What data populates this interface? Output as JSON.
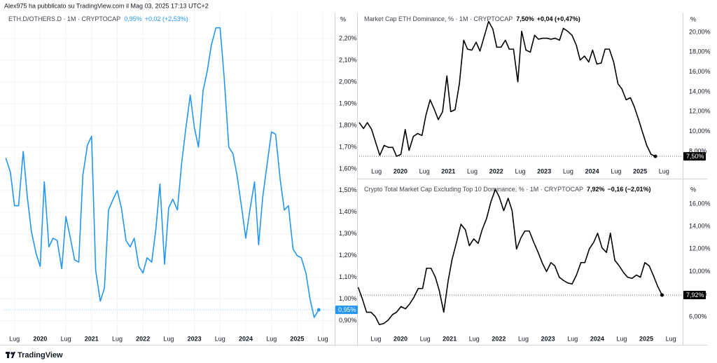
{
  "header": "Alex975 ha pubblicato su TradingView.com il Mag 03, 2025 17:13 UTC+2",
  "footer": "TradingView",
  "chart_data": [
    {
      "type": "line",
      "title": "ETH.D/OTHERS.D · 1M · CRYPTOCAP",
      "legend_value": "0,95%",
      "legend_change": "+0,02 (+2,53%)",
      "y_unit": "%",
      "last_value_label": "0,95%",
      "color": "#2196f3",
      "grid": true,
      "xlim": [
        2019.3,
        2025.73
      ],
      "ylim": [
        0.86,
        2.32
      ],
      "xticks": [
        {
          "value": 2019.5,
          "label": "Lug"
        },
        2020,
        {
          "value": 2020.5,
          "label": "Lug"
        },
        2021,
        {
          "value": 2021.5,
          "label": "Lug"
        },
        2022,
        {
          "value": 2022.5,
          "label": "Lug"
        },
        2023,
        {
          "value": 2023.5,
          "label": "Lug"
        },
        2024,
        {
          "value": 2024.5,
          "label": "Lug"
        },
        2025,
        {
          "value": 2025.5,
          "label": "Lug"
        }
      ],
      "yticks": [
        {
          "value": 0.9,
          "label": "0,90%"
        },
        {
          "value": 1.0,
          "label": "1,00%"
        },
        {
          "value": 1.1,
          "label": "1,10%"
        },
        {
          "value": 1.2,
          "label": "1,20%"
        },
        {
          "value": 1.3,
          "label": "1,30%"
        },
        {
          "value": 1.4,
          "label": "1,40%"
        },
        {
          "value": 1.5,
          "label": "1,50%"
        },
        {
          "value": 1.6,
          "label": "1,60%"
        },
        {
          "value": 1.7,
          "label": "1,70%"
        },
        {
          "value": 1.8,
          "label": "1,80%"
        },
        {
          "value": 1.9,
          "label": "1,90%"
        },
        {
          "value": 2.0,
          "label": "2,00%"
        },
        {
          "value": 2.1,
          "label": "2,10%"
        },
        {
          "value": 2.2,
          "label": "2,20%"
        }
      ],
      "x": [
        2019.33,
        2019.42,
        2019.5,
        2019.58,
        2019.67,
        2019.75,
        2019.83,
        2019.92,
        2020,
        2020.08,
        2020.17,
        2020.25,
        2020.33,
        2020.42,
        2020.5,
        2020.58,
        2020.67,
        2020.75,
        2020.83,
        2020.92,
        2021,
        2021.08,
        2021.17,
        2021.25,
        2021.33,
        2021.42,
        2021.5,
        2021.58,
        2021.67,
        2021.75,
        2021.83,
        2021.92,
        2022,
        2022.08,
        2022.17,
        2022.25,
        2022.33,
        2022.42,
        2022.5,
        2022.58,
        2022.67,
        2022.75,
        2022.83,
        2022.92,
        2023,
        2023.08,
        2023.17,
        2023.25,
        2023.33,
        2023.42,
        2023.5,
        2023.58,
        2023.67,
        2023.75,
        2023.83,
        2023.92,
        2024,
        2024.08,
        2024.17,
        2024.25,
        2024.33,
        2024.42,
        2024.5,
        2024.58,
        2024.67,
        2024.75,
        2024.83,
        2024.92,
        2025,
        2025.08,
        2025.17,
        2025.25,
        2025.33,
        2025.42
      ],
      "values": [
        1.65,
        1.585,
        1.43,
        1.43,
        1.68,
        1.47,
        1.31,
        1.21,
        1.15,
        1.54,
        1.24,
        1.28,
        1.27,
        1.14,
        1.38,
        1.29,
        1.18,
        1.17,
        1.57,
        1.71,
        1.75,
        1.13,
        0.99,
        1.05,
        1.41,
        1.46,
        1.5,
        1.42,
        1.27,
        1.24,
        1.28,
        1.15,
        1.12,
        1.19,
        1.17,
        1.32,
        1.53,
        1.16,
        1.42,
        1.46,
        1.41,
        1.62,
        1.78,
        1.94,
        1.79,
        1.7,
        1.96,
        2.05,
        2.17,
        2.25,
        2.25,
        2.02,
        1.7,
        1.67,
        1.57,
        1.42,
        1.28,
        1.41,
        1.54,
        1.25,
        1.47,
        1.63,
        1.77,
        1.76,
        1.55,
        1.41,
        1.43,
        1.23,
        1.2,
        1.19,
        1.12,
        1.0,
        0.915,
        0.95
      ]
    },
    {
      "type": "line",
      "title": "Market Cap ETH Dominance, % · 1M · CRYPTOCAP",
      "legend_value": "7,50%",
      "legend_change": "+0,04 (+0,47%)",
      "y_unit": "%",
      "last_value_label": "7,50%",
      "color": "#000000",
      "grid": false,
      "xlim": [
        2019.14,
        2025.89
      ],
      "ylim": [
        6.87,
        21.98
      ],
      "xticks": [
        {
          "value": 2019.5,
          "label": "Lug"
        },
        2020,
        {
          "value": 2020.5,
          "label": "Lug"
        },
        2021,
        {
          "value": 2021.5,
          "label": "Lug"
        },
        2022,
        {
          "value": 2022.5,
          "label": "Lug"
        },
        2023,
        {
          "value": 2023.5,
          "label": "Lug"
        },
        2024,
        {
          "value": 2024.5,
          "label": "Lug"
        },
        2025,
        {
          "value": 2025.5,
          "label": "Lug"
        }
      ],
      "yticks": [
        {
          "value": 8,
          "label": "8,00%"
        },
        {
          "value": 10,
          "label": "10,00%"
        },
        {
          "value": 12,
          "label": "12,00%"
        },
        {
          "value": 14,
          "label": "14,00%"
        },
        {
          "value": 16,
          "label": "16,00%"
        },
        {
          "value": 18,
          "label": "18,00%"
        },
        {
          "value": 20,
          "label": "20,00%"
        }
      ],
      "x": [
        2019.14,
        2019.23,
        2019.31,
        2019.4,
        2019.49,
        2019.57,
        2019.66,
        2019.75,
        2019.84,
        2019.92,
        2020.01,
        2020.1,
        2020.18,
        2020.27,
        2020.36,
        2020.45,
        2020.53,
        2020.62,
        2020.71,
        2020.79,
        2020.88,
        2020.97,
        2021.05,
        2021.14,
        2021.23,
        2021.32,
        2021.4,
        2021.49,
        2021.58,
        2021.66,
        2021.75,
        2021.84,
        2021.93,
        2022.01,
        2022.1,
        2022.19,
        2022.27,
        2022.36,
        2022.45,
        2022.53,
        2022.62,
        2022.71,
        2022.8,
        2022.88,
        2022.97,
        2023.06,
        2023.14,
        2023.23,
        2023.32,
        2023.4,
        2023.49,
        2023.58,
        2023.67,
        2023.75,
        2023.84,
        2023.93,
        2024.01,
        2024.1,
        2024.19,
        2024.27,
        2024.36,
        2024.45,
        2024.54,
        2024.62,
        2024.71,
        2024.8,
        2024.88,
        2024.97,
        2025.06,
        2025.14,
        2025.23,
        2025.32
      ],
      "values": [
        10.9,
        10.3,
        10.9,
        10.2,
        8.8,
        7.6,
        8.6,
        8.4,
        8.4,
        7.5,
        7.7,
        10.2,
        8.1,
        9.5,
        9.8,
        9.6,
        11.6,
        13.2,
        12.2,
        11.2,
        12.0,
        15.6,
        12.0,
        12.2,
        14.8,
        19.2,
        18.3,
        18.2,
        19.0,
        18.1,
        19.6,
        21.1,
        20.3,
        18.5,
        18.5,
        19.2,
        18.3,
        18.3,
        15.0,
        20.1,
        18.2,
        18.0,
        19.7,
        19.3,
        19.4,
        19.4,
        19.3,
        19.4,
        19.2,
        20.4,
        20.1,
        19.7,
        18.7,
        17.2,
        17.6,
        17.0,
        18.2,
        16.8,
        16.9,
        18.3,
        18.3,
        17.0,
        14.8,
        14.3,
        13.2,
        13.4,
        12.5,
        11.2,
        9.8,
        8.6,
        7.7,
        7.5
      ]
    },
    {
      "type": "line",
      "title": "Crypto Total Market Cap Excluding Top 10 Dominance, % · 1M · CRYPTOCAP",
      "legend_value": "7,92%",
      "legend_change": "−0,16 (−2,01%)",
      "y_unit": "%",
      "last_value_label": "7,92%",
      "color": "#000000",
      "grid": false,
      "xlim": [
        2019.16,
        2025.74
      ],
      "ylim": [
        4.88,
        17.8
      ],
      "xticks": [
        {
          "value": 2019.5,
          "label": "Lug"
        },
        2020,
        {
          "value": 2020.5,
          "label": "Lug"
        },
        2021,
        {
          "value": 2021.5,
          "label": "Lug"
        },
        2022,
        {
          "value": 2022.5,
          "label": "Lug"
        },
        2023,
        {
          "value": 2023.5,
          "label": "Lug"
        },
        2024,
        {
          "value": 2024.5,
          "label": "Lug"
        },
        2025,
        {
          "value": 2025.5,
          "label": "Lug"
        }
      ],
      "yticks": [
        {
          "value": 6,
          "label": "6,00%"
        },
        {
          "value": 8,
          "label": "8,00%"
        },
        {
          "value": 10,
          "label": "10,00%"
        },
        {
          "value": 12,
          "label": "12,00%"
        },
        {
          "value": 14,
          "label": "14,00%"
        },
        {
          "value": 16,
          "label": "16,00%"
        }
      ],
      "x": [
        2019.14,
        2019.23,
        2019.31,
        2019.4,
        2019.49,
        2019.57,
        2019.66,
        2019.75,
        2019.84,
        2019.92,
        2020.01,
        2020.1,
        2020.18,
        2020.27,
        2020.36,
        2020.45,
        2020.53,
        2020.62,
        2020.71,
        2020.79,
        2020.88,
        2020.97,
        2021.05,
        2021.14,
        2021.23,
        2021.32,
        2021.4,
        2021.49,
        2021.58,
        2021.66,
        2021.75,
        2021.84,
        2021.93,
        2022.01,
        2022.1,
        2022.19,
        2022.27,
        2022.36,
        2022.45,
        2022.53,
        2022.62,
        2022.71,
        2022.8,
        2022.88,
        2022.97,
        2023.06,
        2023.14,
        2023.23,
        2023.32,
        2023.4,
        2023.49,
        2023.58,
        2023.67,
        2023.75,
        2023.84,
        2023.93,
        2024.01,
        2024.1,
        2024.19,
        2024.27,
        2024.36,
        2024.45,
        2024.54,
        2024.62,
        2024.71,
        2024.8,
        2024.88,
        2024.97,
        2025.06,
        2025.14,
        2025.23,
        2025.32
      ],
      "values": [
        8.6,
        7.5,
        6.4,
        6.4,
        6.0,
        5.3,
        5.4,
        5.7,
        6.2,
        6.4,
        6.9,
        6.7,
        7.1,
        7.7,
        8.5,
        8.5,
        10.3,
        10.3,
        9.5,
        8.3,
        6.4,
        9.2,
        11.1,
        12.6,
        14.2,
        13.7,
        12.3,
        12.9,
        12.5,
        13.7,
        14.7,
        16.2,
        17.3,
        16.6,
        15.4,
        16.5,
        15.4,
        12.0,
        13.0,
        13.6,
        13.6,
        12.6,
        11.7,
        10.8,
        10.0,
        10.8,
        10.5,
        9.5,
        9.2,
        9.0,
        8.9,
        9.7,
        10.8,
        10.8,
        12.0,
        12.6,
        13.4,
        12.1,
        11.7,
        13.4,
        11.0,
        10.5,
        9.9,
        9.5,
        9.4,
        9.7,
        9.5,
        10.8,
        10.5,
        9.7,
        8.7,
        7.92
      ]
    }
  ]
}
